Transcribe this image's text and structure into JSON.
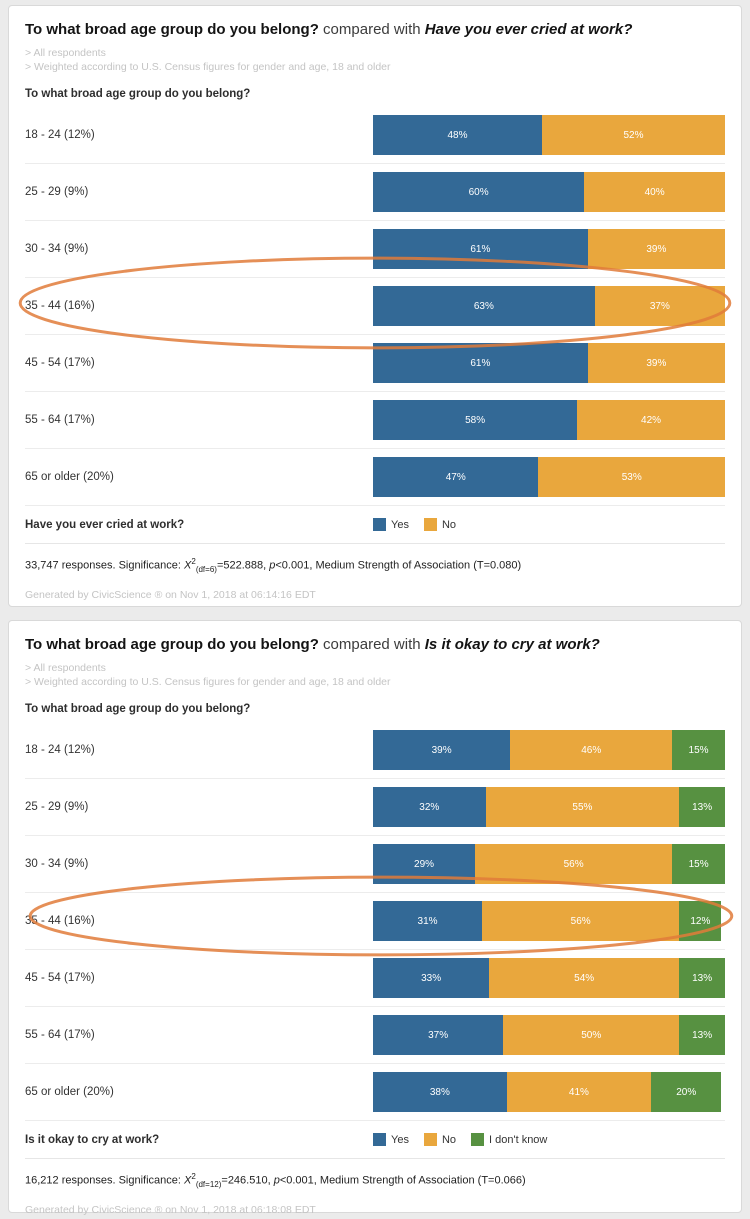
{
  "colors": {
    "yes": "#336996",
    "no": "#e9a73d",
    "dont_know": "#579141",
    "annotation": "#e07b3a",
    "card_border": "#d9d9d9",
    "page_bg": "#ebebeb"
  },
  "chart_data": [
    {
      "type": "bar",
      "orientation": "horizontal",
      "stacked": true,
      "unit": "%",
      "title_parts": {
        "main": "To what broad age group do you belong?",
        "connector": "compared with",
        "compare": "Have you ever cried at work?"
      },
      "filters": [
        "> All respondents",
        "> Weighted according to U.S. Census figures for gender and age, 18 and older"
      ],
      "section_question": "To what broad age group do you belong?",
      "categories": [
        "18 - 24 (12%)",
        "25 - 29 (9%)",
        "30 - 34 (9%)",
        "35 - 44 (16%)",
        "45 - 54 (17%)",
        "55 - 64 (17%)",
        "65 or older (20%)"
      ],
      "series": [
        {
          "name": "Yes",
          "color": "#336996",
          "values": [
            48,
            60,
            61,
            63,
            61,
            58,
            47
          ]
        },
        {
          "name": "No",
          "color": "#e9a73d",
          "values": [
            52,
            40,
            39,
            37,
            39,
            42,
            53
          ]
        }
      ],
      "legend_question": "Have you ever cried at work?",
      "highlighted_category": "35 - 44 (16%)",
      "footnote_parts": {
        "responses": "33,747 responses.",
        "significance_label": "Significance:",
        "x": "X",
        "x_sup": "2",
        "x_sub": "(df=6)",
        "x_value": "=522.888,",
        "p": "p",
        "p_value": "<0.001,",
        "strength": "Medium Strength of Association (T=0.080)"
      },
      "generated": "Generated by CivicScience ® on Nov 1, 2018 at 06:14:16 EDT"
    },
    {
      "type": "bar",
      "orientation": "horizontal",
      "stacked": true,
      "unit": "%",
      "title_parts": {
        "main": "To what broad age group do you belong?",
        "connector": "compared with",
        "compare": "Is it okay to cry at work?"
      },
      "filters": [
        "> All respondents",
        "> Weighted according to U.S. Census figures for gender and age, 18 and older"
      ],
      "section_question": "To what broad age group do you belong?",
      "categories": [
        "18 - 24 (12%)",
        "25 - 29 (9%)",
        "30 - 34 (9%)",
        "35 - 44 (16%)",
        "45 - 54 (17%)",
        "55 - 64 (17%)",
        "65 or older (20%)"
      ],
      "series": [
        {
          "name": "Yes",
          "color": "#336996",
          "values": [
            39,
            32,
            29,
            31,
            33,
            37,
            38
          ]
        },
        {
          "name": "No",
          "color": "#e9a73d",
          "values": [
            46,
            55,
            56,
            56,
            54,
            50,
            41
          ]
        },
        {
          "name": "I don't know",
          "color": "#579141",
          "values": [
            15,
            13,
            15,
            12,
            13,
            13,
            20
          ]
        }
      ],
      "legend_question": "Is it okay to cry at work?",
      "highlighted_category": "35 - 44 (16%)",
      "footnote_parts": {
        "responses": "16,212 responses.",
        "significance_label": "Significance:",
        "x": "X",
        "x_sup": "2",
        "x_sub": "(df=12)",
        "x_value": "=246.510,",
        "p": "p",
        "p_value": "<0.001,",
        "strength": "Medium Strength of Association (T=0.066)"
      },
      "generated": "Generated by CivicScience ® on Nov 1, 2018 at 06:18:08 EDT"
    }
  ]
}
